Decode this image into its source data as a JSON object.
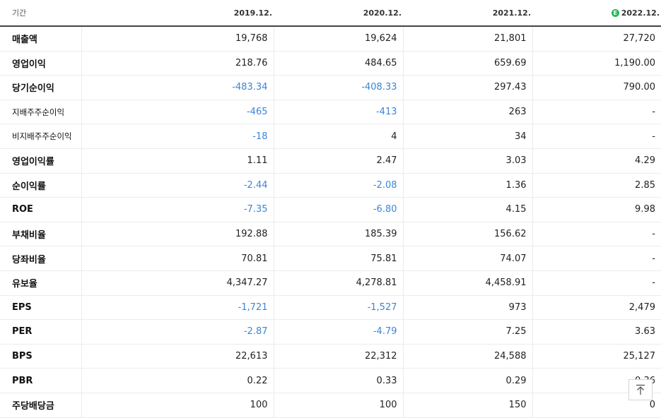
{
  "header": {
    "label": "기간",
    "periods": [
      "2019.12.",
      "2020.12.",
      "2021.12.",
      "2022.12."
    ],
    "estimate_badge": "E"
  },
  "rows": [
    {
      "label": "매출액",
      "values": [
        "19,768",
        "19,624",
        "21,801",
        "27,720"
      ],
      "neg": [
        false,
        false,
        false,
        false
      ]
    },
    {
      "label": "영업이익",
      "values": [
        "218.76",
        "484.65",
        "659.69",
        "1,190.00"
      ],
      "neg": [
        false,
        false,
        false,
        false
      ]
    },
    {
      "label": "당기순이익",
      "values": [
        "-483.34",
        "-408.33",
        "297.43",
        "790.00"
      ],
      "neg": [
        true,
        true,
        false,
        false
      ]
    },
    {
      "label": "지배주주순이익",
      "values": [
        "-465",
        "-413",
        "263",
        "-"
      ],
      "neg": [
        true,
        true,
        false,
        false
      ]
    },
    {
      "label": "비지배주주순이익",
      "values": [
        "-18",
        "4",
        "34",
        "-"
      ],
      "neg": [
        true,
        false,
        false,
        false
      ]
    },
    {
      "label": "영업이익률",
      "values": [
        "1.11",
        "2.47",
        "3.03",
        "4.29"
      ],
      "neg": [
        false,
        false,
        false,
        false
      ]
    },
    {
      "label": "순이익률",
      "values": [
        "-2.44",
        "-2.08",
        "1.36",
        "2.85"
      ],
      "neg": [
        true,
        true,
        false,
        false
      ]
    },
    {
      "label": "ROE",
      "values": [
        "-7.35",
        "-6.80",
        "4.15",
        "9.98"
      ],
      "neg": [
        true,
        true,
        false,
        false
      ]
    },
    {
      "label": "부채비율",
      "values": [
        "192.88",
        "185.39",
        "156.62",
        "-"
      ],
      "neg": [
        false,
        false,
        false,
        false
      ]
    },
    {
      "label": "당좌비율",
      "values": [
        "70.81",
        "75.81",
        "74.07",
        "-"
      ],
      "neg": [
        false,
        false,
        false,
        false
      ]
    },
    {
      "label": "유보율",
      "values": [
        "4,347.27",
        "4,278.81",
        "4,458.91",
        "-"
      ],
      "neg": [
        false,
        false,
        false,
        false
      ]
    },
    {
      "label": "EPS",
      "values": [
        "-1,721",
        "-1,527",
        "973",
        "2,479"
      ],
      "neg": [
        true,
        true,
        false,
        false
      ]
    },
    {
      "label": "PER",
      "values": [
        "-2.87",
        "-4.79",
        "7.25",
        "3.63"
      ],
      "neg": [
        true,
        true,
        false,
        false
      ]
    },
    {
      "label": "BPS",
      "values": [
        "22,613",
        "22,312",
        "24,588",
        "25,127"
      ],
      "neg": [
        false,
        false,
        false,
        false
      ]
    },
    {
      "label": "PBR",
      "values": [
        "0.22",
        "0.33",
        "0.29",
        "0.36"
      ],
      "neg": [
        false,
        false,
        false,
        false
      ]
    },
    {
      "label": "주당배당금",
      "values": [
        "100",
        "100",
        "150",
        "0"
      ],
      "neg": [
        false,
        false,
        false,
        false
      ]
    }
  ],
  "scroll_top_icon": "arrow-up-to-top-icon",
  "colors": {
    "negative": "#3a86d6",
    "estimate_badge": "#1db954"
  }
}
